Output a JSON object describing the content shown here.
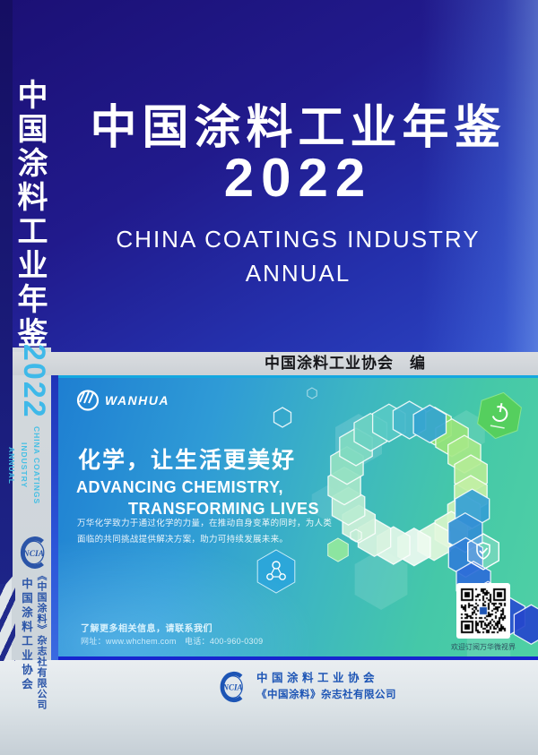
{
  "spine": {
    "title": "中国涂料工业年鉴",
    "year": "2022",
    "subtitle_en_line1": "CHINA COATINGS INDUSTRY",
    "subtitle_en_line2": "ANNUAL",
    "logo_text": "NCIA",
    "org1": "中国涂料工业协会",
    "org2": "《中国涂料》杂志社有限公司"
  },
  "front": {
    "title": "中国涂料工业年鉴",
    "year": "2022",
    "subtitle_line1": "CHINA COATINGS INDUSTRY",
    "subtitle_line2": "ANNUAL",
    "editor_line": "中国涂料工业协会　编"
  },
  "banner": {
    "brand": "WANHUA",
    "headline_cn": "化学，让生活更美好",
    "headline_en_line1": "ADVANCING CHEMISTRY,",
    "headline_en_line2": "TRANSFORMING LIVES",
    "body_line1": "万华化学致力于通过化学的力量，在推动自身变革的同时，为人类",
    "body_line2": "面临的共同挑战提供解决方案，助力可持续发展未来。",
    "contact_line1": "了解更多相关信息，请联系我们",
    "contact_line2": "网址：www.whchem.com　电话：400-960-0309",
    "qr_caption": "欢迎订阅万华微视界"
  },
  "footer": {
    "logo_text": "NCIA",
    "org_line1": "中国涂料工业协会",
    "org_line2": "《中国涂料》杂志社有限公司"
  },
  "colors": {
    "cover_blue_dark": "#1b1075",
    "cover_blue": "#2430ac",
    "spine_year_cyan": "#3fb9e9",
    "band_gray": "#d4d9dd",
    "banner_blue": "#1e7fd2",
    "banner_green": "#4fd0a4",
    "banner_bottom_line": "#1726cf",
    "org_blue": "#2b55a8",
    "footer_text_blue": "#1d55b5"
  }
}
